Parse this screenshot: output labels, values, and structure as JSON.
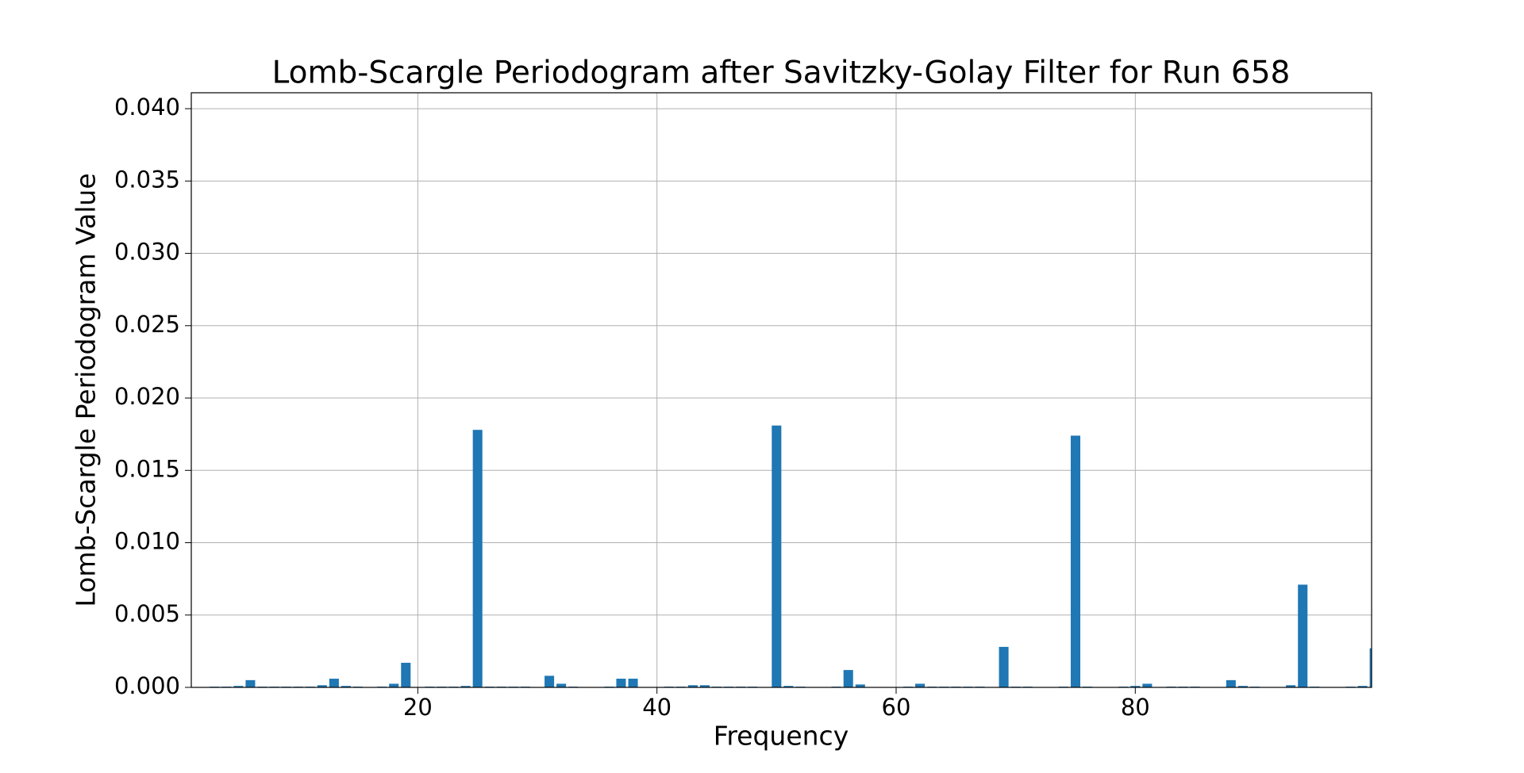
{
  "chart_data": {
    "type": "bar",
    "title": "Lomb-Scargle Periodogram after Savitzky-Golay Filter for Run 658",
    "xlabel": "Frequency",
    "ylabel": "Lomb-Scargle Periodogram Value",
    "color": "#1f77b4",
    "grid": true,
    "bar_width": 0.8,
    "x": [
      3,
      4,
      5,
      6,
      7,
      8,
      9,
      10,
      11,
      12,
      13,
      14,
      15,
      16,
      17,
      18,
      19,
      20,
      21,
      22,
      23,
      24,
      25,
      26,
      27,
      28,
      29,
      30,
      31,
      32,
      33,
      34,
      35,
      36,
      37,
      38,
      39,
      40,
      41,
      42,
      43,
      44,
      45,
      46,
      47,
      48,
      49,
      50,
      51,
      52,
      53,
      54,
      55,
      56,
      57,
      58,
      59,
      60,
      61,
      62,
      63,
      64,
      65,
      66,
      67,
      68,
      69,
      70,
      71,
      72,
      73,
      74,
      75,
      76,
      77,
      78,
      79,
      80,
      81,
      82,
      83,
      84,
      85,
      86,
      87,
      88,
      89,
      90,
      91,
      92,
      93,
      94,
      95,
      96,
      97,
      98,
      99,
      100
    ],
    "values": [
      5e-05,
      5e-05,
      0.0001,
      0.0005,
      5e-05,
      5e-05,
      5e-05,
      5e-05,
      5e-05,
      0.00015,
      0.0006,
      0.0001,
      5e-05,
      0,
      5e-05,
      0.00025,
      0.0017,
      0,
      5e-05,
      5e-05,
      5e-05,
      0.0001,
      0.0178,
      5e-05,
      5e-05,
      5e-05,
      5e-05,
      0,
      0.0008,
      0.00025,
      5e-05,
      0,
      0,
      5e-05,
      0.0006,
      0.0006,
      0,
      0,
      5e-05,
      5e-05,
      0.00015,
      0.00015,
      5e-05,
      5e-05,
      5e-05,
      5e-05,
      0,
      0.0181,
      0.0001,
      5e-05,
      0,
      0,
      5e-05,
      0.0012,
      0.0002,
      0,
      0,
      0,
      5e-05,
      0.00025,
      5e-05,
      5e-05,
      5e-05,
      5e-05,
      5e-05,
      0,
      0.0028,
      5e-05,
      5e-05,
      0,
      0,
      5e-05,
      0.0174,
      5e-05,
      0,
      0,
      5e-05,
      0.0001,
      0.00025,
      0,
      5e-05,
      5e-05,
      5e-05,
      0,
      0,
      0.0005,
      0.0001,
      5e-05,
      0,
      0,
      0.00015,
      0.0071,
      5e-05,
      0,
      0,
      5e-05,
      0.0001,
      0.0027
    ],
    "xlim": [
      1.06,
      99.76
    ],
    "xticks": [
      20,
      40,
      60,
      80
    ],
    "ylim": [
      0,
      0.0411
    ],
    "yticks": [
      {
        "value": 0,
        "label": "0.000"
      },
      {
        "value": 0.005,
        "label": "0.005"
      },
      {
        "value": 0.01,
        "label": "0.010"
      },
      {
        "value": 0.015,
        "label": "0.015"
      },
      {
        "value": 0.02,
        "label": "0.020"
      },
      {
        "value": 0.025,
        "label": "0.025"
      },
      {
        "value": 0.03,
        "label": "0.030"
      },
      {
        "value": 0.035,
        "label": "0.035"
      },
      {
        "value": 0.04,
        "label": "0.040"
      }
    ]
  }
}
